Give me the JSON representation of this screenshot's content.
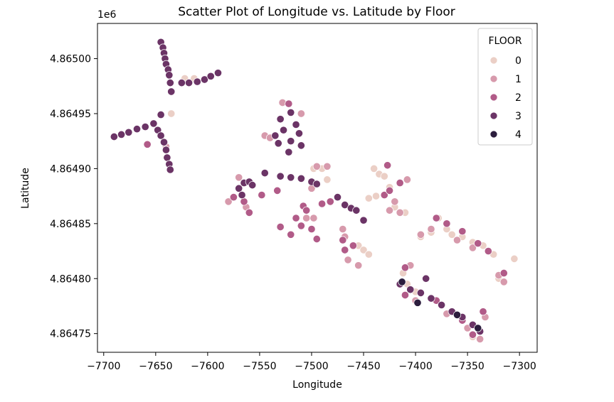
{
  "chart_data": {
    "type": "scatter",
    "title": "Scatter Plot of Longitude vs. Latitude by Floor",
    "x_label": "Longitude",
    "y_label": "Latitude",
    "y_offset_text": "1e6",
    "xlim": [
      -7706,
      -7283
    ],
    "ylim": [
      4864733,
      4865032
    ],
    "xticks": [
      {
        "value": -7700,
        "label": "−7700"
      },
      {
        "value": -7650,
        "label": "−7650"
      },
      {
        "value": -7600,
        "label": "−7600"
      },
      {
        "value": -7550,
        "label": "−7550"
      },
      {
        "value": -7500,
        "label": "−7500"
      },
      {
        "value": -7450,
        "label": "−7450"
      },
      {
        "value": -7400,
        "label": "−7400"
      },
      {
        "value": -7350,
        "label": "−7350"
      },
      {
        "value": -7300,
        "label": "−7300"
      }
    ],
    "yticks": [
      {
        "value": 4864750,
        "label": "4.86475"
      },
      {
        "value": 4864800,
        "label": "4.86480"
      },
      {
        "value": 4864850,
        "label": "4.86485"
      },
      {
        "value": 4864900,
        "label": "4.86490"
      },
      {
        "value": 4864950,
        "label": "4.86495"
      },
      {
        "value": 4865000,
        "label": "4.86500"
      }
    ],
    "legend_title": "FLOOR",
    "legend_position": "upper right",
    "series": [
      {
        "name": "0",
        "color": "#ebcfc6",
        "x": [
          -7635,
          -7622,
          -7613,
          -7498,
          -7490,
          -7485,
          -7455,
          -7450,
          -7445,
          -7440,
          -7435,
          -7430,
          -7445,
          -7438,
          -7425,
          -7420,
          -7378,
          -7370,
          -7365,
          -7355,
          -7345,
          -7335,
          -7325,
          -7305,
          -7320,
          -7395,
          -7385,
          -7412,
          -7408,
          -7335,
          -7345,
          -7400,
          -7410
        ],
        "values": [
          4864950,
          4864982,
          4864982,
          4864900,
          4864900,
          4864890,
          4864830,
          4864826,
          4864822,
          4864900,
          4864895,
          4864893,
          4864873,
          4864875,
          4864883,
          4864865,
          4864855,
          4864845,
          4864840,
          4864838,
          4864833,
          4864830,
          4864822,
          4864818,
          4864800,
          4864838,
          4864842,
          4864805,
          4864795,
          4864770,
          4864747,
          4864788,
          4864860
        ]
      },
      {
        "name": "1",
        "color": "#d79aac",
        "x": [
          -7580,
          -7570,
          -7563,
          -7545,
          -7528,
          -7510,
          -7505,
          -7498,
          -7495,
          -7485,
          -7470,
          -7465,
          -7455,
          -7468,
          -7420,
          -7415,
          -7425,
          -7408,
          -7395,
          -7385,
          -7360,
          -7345,
          -7320,
          -7315,
          -7405,
          -7400,
          -7370,
          -7350,
          -7333,
          -7338,
          -7640,
          -7500,
          -7540
        ],
        "values": [
          4864870,
          4864892,
          4864865,
          4864930,
          4864960,
          4864950,
          4864855,
          4864855,
          4864902,
          4864902,
          4864845,
          4864817,
          4864812,
          4864838,
          4864870,
          4864860,
          4864862,
          4864890,
          4864840,
          4864845,
          4864835,
          4864828,
          4864803,
          4864797,
          4864812,
          4864780,
          4864768,
          4864755,
          4864765,
          4864745,
          4864920,
          4864882,
          4864928
        ]
      },
      {
        "name": "2",
        "color": "#b15b88",
        "x": [
          -7658,
          -7565,
          -7560,
          -7575,
          -7548,
          -7533,
          -7508,
          -7505,
          -7515,
          -7530,
          -7520,
          -7510,
          -7500,
          -7495,
          -7490,
          -7482,
          -7470,
          -7460,
          -7468,
          -7430,
          -7425,
          -7415,
          -7410,
          -7380,
          -7370,
          -7355,
          -7340,
          -7330,
          -7315,
          -7380,
          -7355,
          -7335,
          -7345,
          -7410,
          -7427,
          -7522
        ],
        "values": [
          4864922,
          4864870,
          4864860,
          4864874,
          4864876,
          4864880,
          4864866,
          4864862,
          4864855,
          4864847,
          4864840,
          4864848,
          4864845,
          4864836,
          4864868,
          4864870,
          4864835,
          4864830,
          4864826,
          4864876,
          4864880,
          4864887,
          4864810,
          4864855,
          4864850,
          4864843,
          4864832,
          4864825,
          4864805,
          4864780,
          4864762,
          4864770,
          4864749,
          4864785,
          4864903,
          4864959
        ]
      },
      {
        "name": "3",
        "color": "#6b3466",
        "x": [
          -7645,
          -7643,
          -7642,
          -7641,
          -7640,
          -7638,
          -7637,
          -7636,
          -7635,
          -7625,
          -7618,
          -7610,
          -7603,
          -7597,
          -7590,
          -7690,
          -7683,
          -7676,
          -7668,
          -7660,
          -7652,
          -7645,
          -7648,
          -7645,
          -7642,
          -7640,
          -7639,
          -7637,
          -7636,
          -7530,
          -7535,
          -7532,
          -7527,
          -7520,
          -7515,
          -7512,
          -7520,
          -7522,
          -7510,
          -7545,
          -7530,
          -7520,
          -7510,
          -7500,
          -7495,
          -7570,
          -7565,
          -7560,
          -7557,
          -7567,
          -7475,
          -7468,
          -7462,
          -7457,
          -7450,
          -7415,
          -7405,
          -7395,
          -7385,
          -7375,
          -7365,
          -7355,
          -7345,
          -7338,
          -7390
        ],
        "values": [
          4865015,
          4865010,
          4865005,
          4865000,
          4864995,
          4864990,
          4864985,
          4864978,
          4864970,
          4864978,
          4864978,
          4864979,
          4864981,
          4864984,
          4864987,
          4864929,
          4864931,
          4864933,
          4864936,
          4864938,
          4864941,
          4864949,
          4864935,
          4864930,
          4864924,
          4864917,
          4864910,
          4864904,
          4864899,
          4864945,
          4864930,
          4864923,
          4864935,
          4864951,
          4864940,
          4864932,
          4864925,
          4864915,
          4864921,
          4864896,
          4864893,
          4864892,
          4864891,
          4864888,
          4864886,
          4864882,
          4864887,
          4864888,
          4864885,
          4864876,
          4864874,
          4864867,
          4864864,
          4864862,
          4864853,
          4864795,
          4864790,
          4864787,
          4864782,
          4864776,
          4864770,
          4864765,
          4864758,
          4864752,
          4864800
        ]
      },
      {
        "name": "4",
        "color": "#2c1d3d",
        "x": [
          -7413,
          -7398,
          -7360,
          -7340
        ],
        "values": [
          4864797,
          4864778,
          4864767,
          4864755
        ]
      }
    ]
  }
}
